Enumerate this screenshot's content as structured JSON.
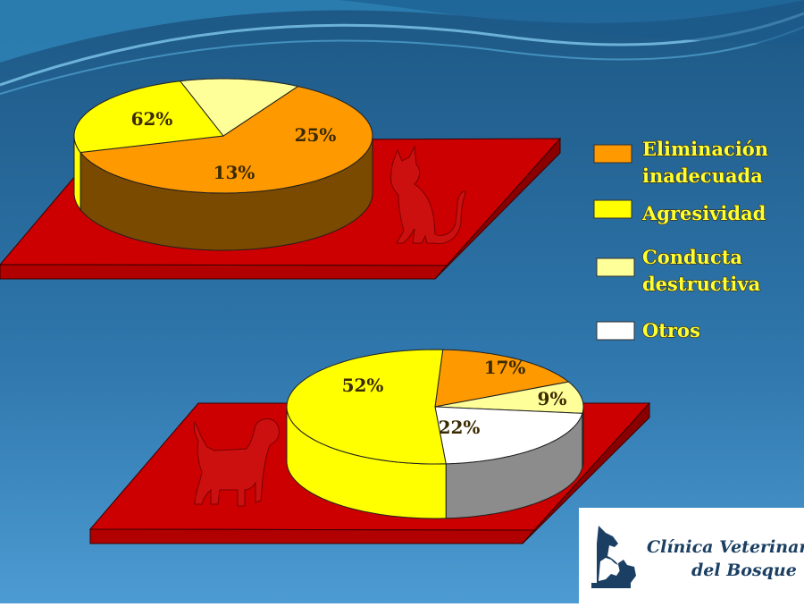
{
  "colors": {
    "orange": "#ff9900",
    "yellow": "#ffff00",
    "light_yellow": "#ffff99",
    "white": "#ffffff",
    "platform": "#cc0000",
    "background_top": "#1f5f8f",
    "background_bottom": "#4a9ad0"
  },
  "legend": [
    {
      "label_lines": [
        "Eliminación",
        "inadecuada"
      ],
      "color": "#ff9900"
    },
    {
      "label_lines": [
        "Agresividad"
      ],
      "color": "#ffff00"
    },
    {
      "label_lines": [
        "Conducta",
        "destructiva"
      ],
      "color": "#ffff99"
    },
    {
      "label_lines": [
        "Otros"
      ],
      "color": "#ffffff"
    }
  ],
  "chart_data": [
    {
      "type": "pie",
      "title": "",
      "icon": "cat-icon",
      "slices": [
        {
          "category": "Eliminación inadecuada",
          "value": 62,
          "label": "62%",
          "color": "#ff9900"
        },
        {
          "category": "Agresividad",
          "value": 25,
          "label": "25%",
          "color": "#ffff00"
        },
        {
          "category": "Conducta destructiva",
          "value": 13,
          "label": "13%",
          "color": "#ffff99"
        }
      ]
    },
    {
      "type": "pie",
      "title": "",
      "icon": "dog-icon",
      "slices": [
        {
          "category": "Eliminación inadecuada",
          "value": 17,
          "label": "17%",
          "color": "#ff9900"
        },
        {
          "category": "Conducta destructiva",
          "value": 9,
          "label": "9%",
          "color": "#ffff99"
        },
        {
          "category": "Otros",
          "value": 22,
          "label": "22%",
          "color": "#ffffff"
        },
        {
          "category": "Agresividad",
          "value": 52,
          "label": "52%",
          "color": "#ffff00"
        }
      ]
    }
  ],
  "logo": {
    "line1": "Clínica Veterinaria",
    "line2": "del Bosque ®"
  }
}
